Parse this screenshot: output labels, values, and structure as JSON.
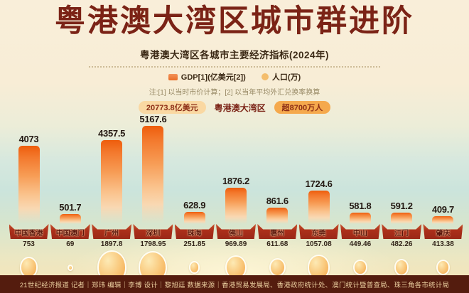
{
  "title": "粤港澳大湾区城市群进阶",
  "subtitle": "粤港澳大湾区各城市主要经济指标(2024年)",
  "legend": {
    "gdp_label": "GDP[1](亿美元[2])",
    "pop_label": "人口(万)"
  },
  "note": "注:[1] 以当时市价计算；[2] 以当年平均外汇兑换率换算",
  "summary": {
    "gdp_total_badge": "20773.8亿美元",
    "region_label": "粤港澳大湾区",
    "pop_total_badge": "超8700万人"
  },
  "footer_credits": "21世纪经济报道  记者｜郑玮  编辑｜李博  设计｜黎旭廷  数据来源｜香港贸易发展局、香港政府统计处、澳门统计暨普查局、珠三角各市统计局",
  "colors": {
    "title_maroon": "#7b2316",
    "bar_orange": "#f26a17",
    "circle_yellow": "#f7b45c",
    "plaque_red": "#a82d1a",
    "badge_light": "#fad8a2",
    "badge_dark": "#f5a94d",
    "footer_brown": "#541c0e"
  },
  "chart_data": {
    "type": "bar",
    "title": "粤港澳大湾区各城市主要经济指标(2024年)",
    "categories": [
      "中国香港",
      "中国澳门",
      "广州",
      "深圳",
      "珠海",
      "佛山",
      "惠州",
      "东莞",
      "中山",
      "江门",
      "肇庆"
    ],
    "series": [
      {
        "name": "GDP[1](亿美元[2])",
        "values": [
          4073,
          501.7,
          4357.5,
          5167.6,
          628.9,
          1876.2,
          861.6,
          1724.6,
          581.8,
          591.2,
          409.7
        ]
      },
      {
        "name": "人口(万)",
        "values": [
          753,
          69,
          1897.8,
          1798.95,
          251.85,
          969.89,
          611.68,
          1057.08,
          449.46,
          482.26,
          413.38
        ]
      }
    ],
    "value_labels": true,
    "grid": false,
    "legend_position": "top",
    "gdp_axis_max": 5200,
    "totals": {
      "gdp": "20773.8亿美元",
      "population": "超8700万人"
    }
  }
}
